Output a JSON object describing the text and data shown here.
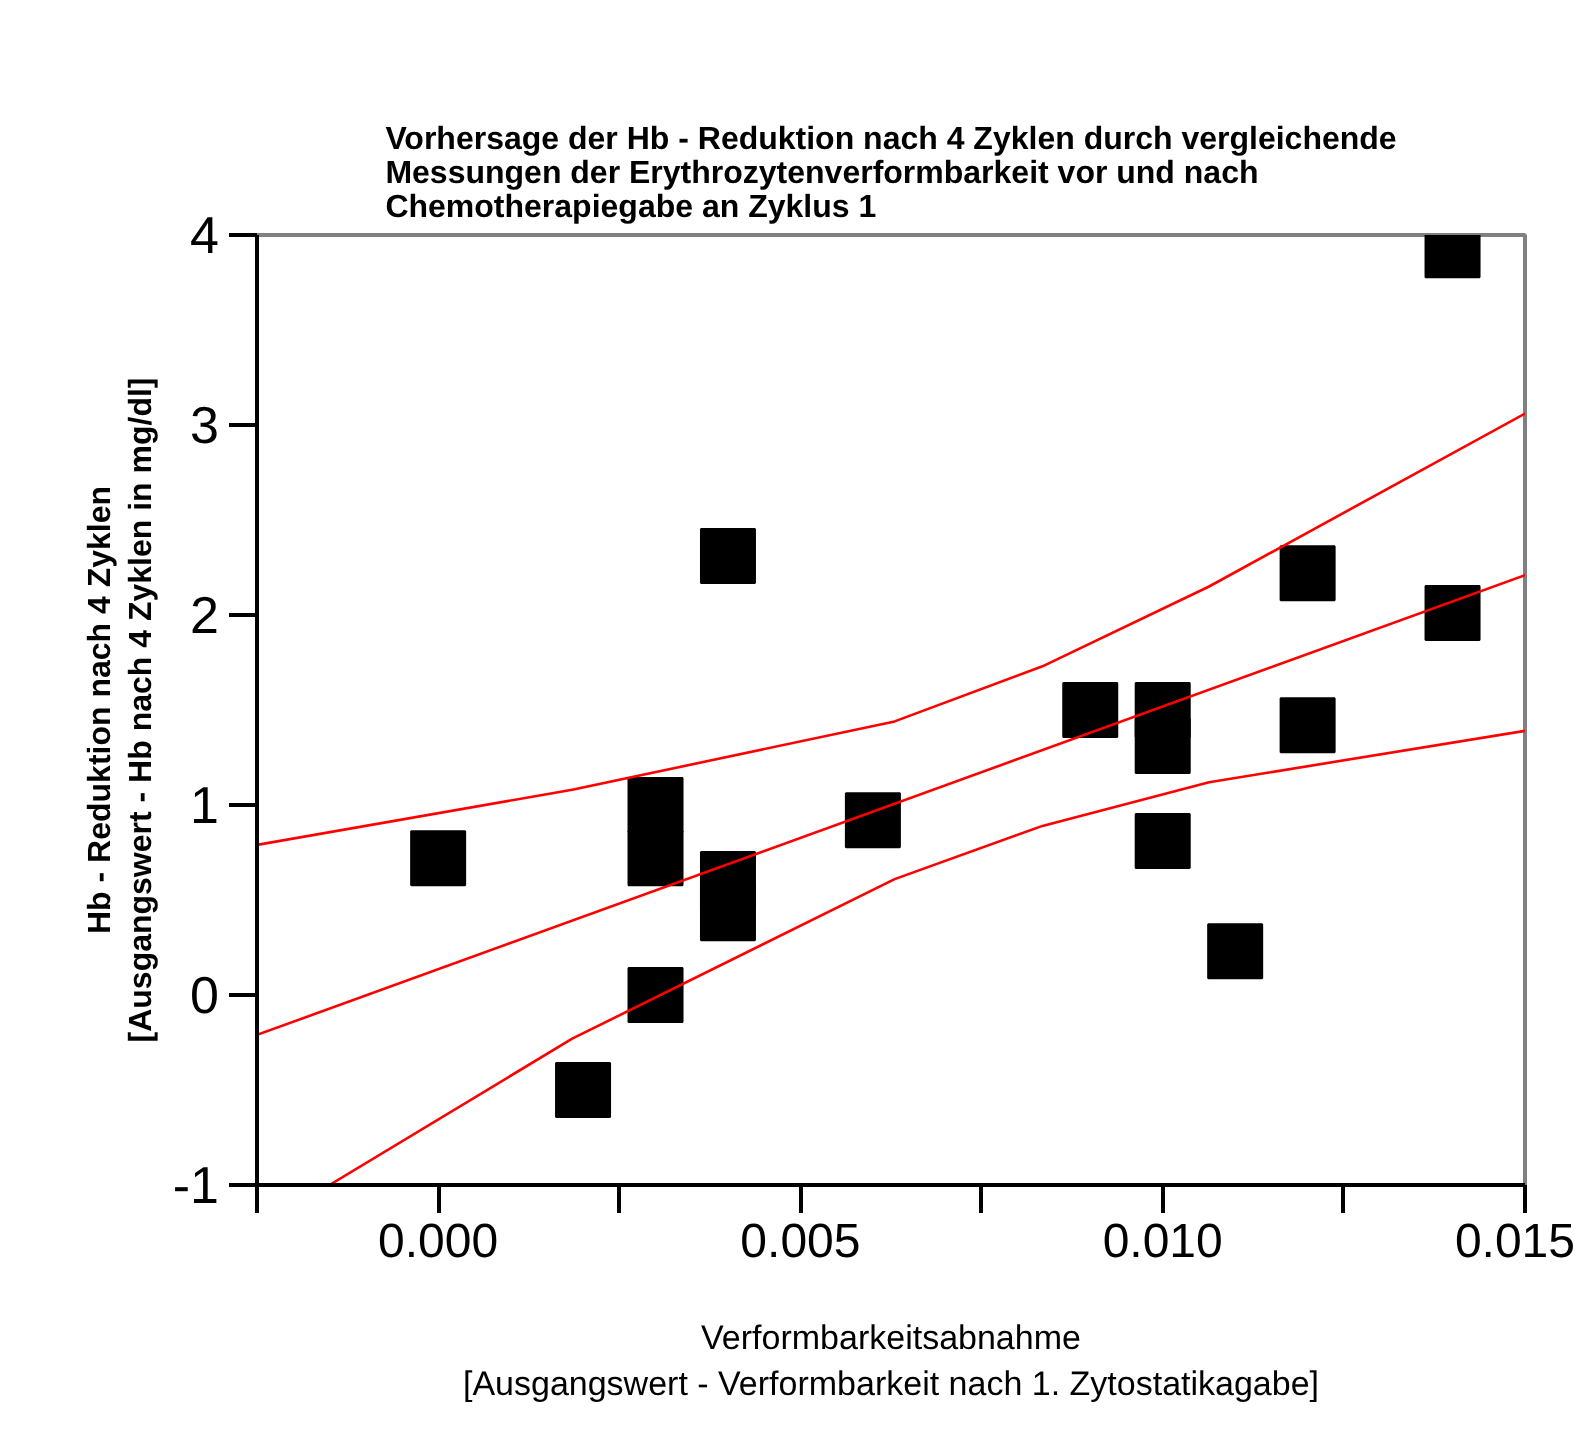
{
  "chart_data": {
    "type": "scatter",
    "title": "Vorhersage der Hb - Reduktion nach 4 Zyklen durch vergleichende\nMessungen der Erythrozytenverformbarkeit vor und nach\nChemotherapiegabe an Zyklus 1",
    "xlabel": "Verformbarkeitsabnahme\n[Ausgangswert - Verformbarkeit nach 1. Zytostatikagabe]",
    "ylabel": "Hb - Reduktion nach 4 Zyklen\n[Ausgangswert - Hb nach 4 Zyklen in mg/dl]",
    "xlim": [
      -0.0025,
      0.015
    ],
    "ylim": [
      -1,
      4
    ],
    "xticks": [
      {
        "value": -0.0025,
        "label": null
      },
      {
        "value": 0,
        "label": "0.000"
      },
      {
        "value": 0.0025,
        "label": null
      },
      {
        "value": 0.005,
        "label": "0.005"
      },
      {
        "value": 0.0075,
        "label": null
      },
      {
        "value": 0.01,
        "label": "0.010"
      },
      {
        "value": 0.0125,
        "label": null
      },
      {
        "value": 0.015,
        "label": "0.015"
      }
    ],
    "yticks": [
      -1,
      0,
      1,
      2,
      3,
      4
    ],
    "grid": false,
    "series": [
      {
        "marker": "square",
        "color": "#000000",
        "x": [
          0,
          0.002,
          0.003,
          0.003,
          0.003,
          0.004,
          0.004,
          0.004,
          0.006,
          0.009,
          0.01,
          0.01,
          0.01,
          0.011,
          0.012,
          0.012,
          0.014,
          0.014
        ],
        "values": [
          0.72,
          -0.5,
          1.0,
          0.72,
          0.0,
          2.31,
          0.61,
          0.43,
          0.92,
          1.5,
          1.5,
          1.31,
          0.81,
          0.23,
          2.22,
          1.42,
          2.01,
          3.92
        ]
      },
      {
        "type": "line",
        "line_style": "solid",
        "color": "#ff0000",
        "x": [
          -0.0025,
          0.015
        ],
        "values": [
          -0.21,
          2.21
        ]
      },
      {
        "type": "line",
        "line_style": "solid",
        "color": "#ff0000",
        "x": [
          -0.0025,
          0.00185,
          0.0063,
          0.00834,
          0.01064,
          0.015
        ],
        "values": [
          0.79,
          1.08,
          1.44,
          1.73,
          2.15,
          3.06
        ]
      },
      {
        "type": "line",
        "line_style": "solid",
        "color": "#ff0000",
        "x": [
          -0.0015,
          0.00185,
          0.0063,
          0.00834,
          0.01064,
          0.015
        ],
        "values": [
          -1.0,
          -0.23,
          0.61,
          0.89,
          1.12,
          1.39
        ]
      }
    ]
  }
}
